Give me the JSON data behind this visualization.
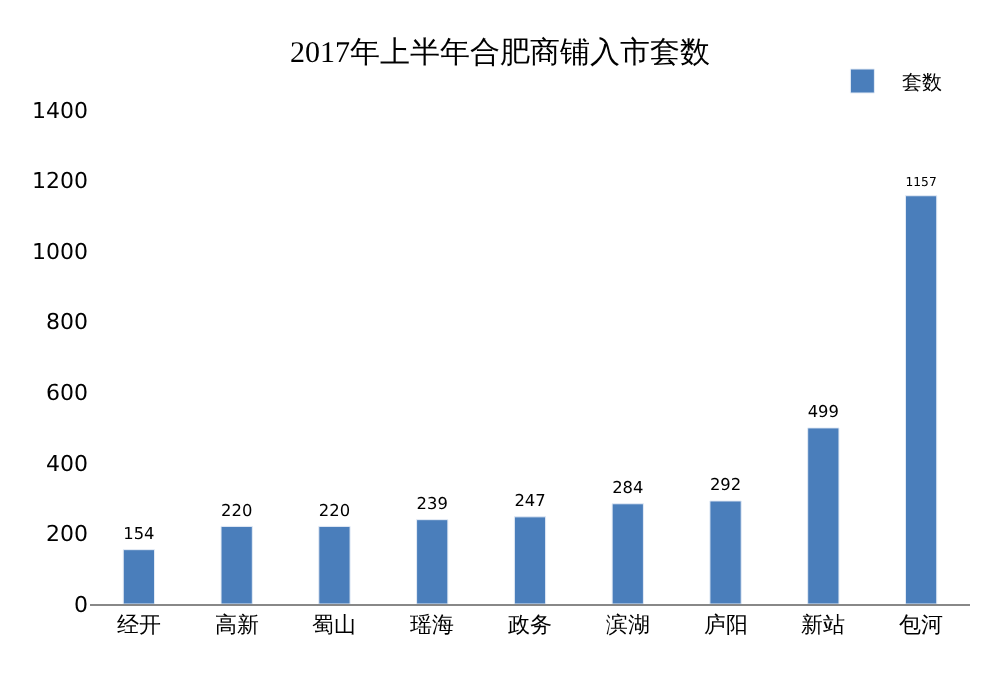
{
  "chart_data": {
    "type": "bar",
    "title": "2017年上半年合肥商铺入市套数",
    "categories": [
      "经开",
      "高新",
      "蜀山",
      "瑶海",
      "政务",
      "滨湖",
      "庐阳",
      "新站",
      "包河"
    ],
    "series": [
      {
        "name": "套数",
        "color": "#4a7ebb",
        "values": [
          154,
          220,
          220,
          239,
          247,
          284,
          292,
          499,
          1157
        ]
      }
    ],
    "ylim": [
      0,
      1400
    ],
    "yticks": [
      0,
      200,
      400,
      600,
      800,
      1000,
      1200,
      1400
    ],
    "grid": false,
    "legend": "top right",
    "data_labels": true
  }
}
